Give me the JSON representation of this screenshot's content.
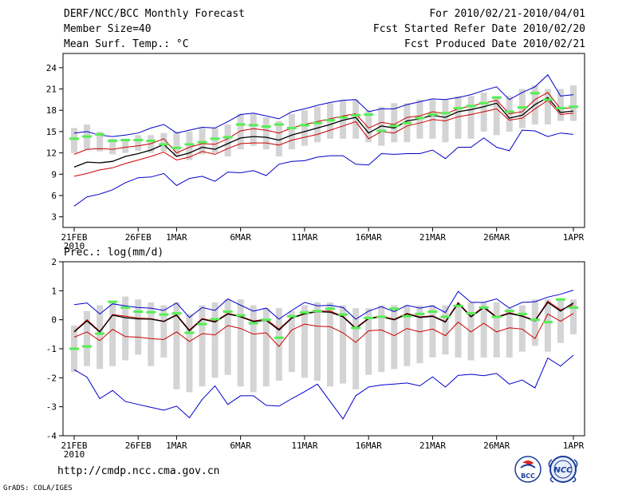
{
  "header": {
    "title": "DERF/NCC/BCC Monthly Forecast",
    "member_size": "Member Size=40",
    "variable": "Mean Surf. Temp.: °C",
    "period": "For 2010/02/21-2010/04/01",
    "started": "Fcst Started Refer Date 2010/02/20",
    "produced": "Fcst Produced Date 2010/02/21"
  },
  "footer": {
    "url": "http://cmdp.ncc.cma.gov.cn",
    "grads": "GrADS: COLA/IGES",
    "logo_bcc": "BCC",
    "logo_ncc": "NCC"
  },
  "colors": {
    "box": "#d4d4d4",
    "mean": "#000000",
    "spread": "#cc0000",
    "extreme": "#0000cc",
    "marker": "#55ee55"
  },
  "chart_data": [
    {
      "type": "box-ensemble",
      "ylabel": "Mean Surf. Temp.: °C",
      "ylim": [
        1.5,
        26
      ],
      "yticks": [
        3,
        6,
        9,
        12,
        15,
        18,
        21,
        24
      ],
      "days": 40,
      "xticks": [
        {
          "day": 0,
          "label": "21FEB"
        },
        {
          "day": 5,
          "label": "26FEB"
        },
        {
          "day": 8,
          "label": "1MAR"
        },
        {
          "day": 13,
          "label": "6MAR"
        },
        {
          "day": 18,
          "label": "11MAR"
        },
        {
          "day": 23,
          "label": "16MAR"
        },
        {
          "day": 28,
          "label": "21MAR"
        },
        {
          "day": 33,
          "label": "26MAR"
        },
        {
          "day": 39,
          "label": "1APR"
        }
      ],
      "year_label": "2010",
      "box_low": [
        12,
        12.5,
        12.2,
        11.8,
        12,
        12.3,
        12,
        12.2,
        11.5,
        11,
        11.8,
        12,
        11.5,
        12.5,
        13,
        12.5,
        11.5,
        12.5,
        13,
        13.5,
        14,
        14,
        14,
        13.5,
        13,
        13.5,
        13.5,
        14,
        14,
        13.5,
        14,
        14,
        15,
        14.5,
        15,
        15.5,
        16,
        16,
        16.5,
        16.5
      ],
      "box_high": [
        15.5,
        16,
        15,
        14,
        14,
        14.5,
        14.5,
        14.8,
        15,
        15,
        15.5,
        15.5,
        16,
        17.5,
        17.5,
        17,
        16.5,
        17.5,
        18,
        18.5,
        19,
        19.5,
        19.5,
        18,
        18.5,
        19,
        19,
        19.5,
        19.5,
        19.5,
        20,
        20,
        20.5,
        20,
        20,
        21,
        21.5,
        21,
        21,
        21.5
      ],
      "max": [
        14.8,
        15,
        14.5,
        14.3,
        14.5,
        14.8,
        15.5,
        16,
        14.8,
        15.2,
        15.6,
        15.5,
        16.4,
        17.4,
        17.6,
        17.2,
        16.8,
        17.8,
        18.2,
        18.7,
        19.1,
        19.4,
        19.5,
        17.8,
        18.2,
        18.2,
        18.8,
        19.2,
        19.6,
        19.5,
        19.8,
        20.2,
        20.8,
        21.3,
        19.5,
        20.5,
        21.3,
        23,
        20,
        20.2
      ],
      "p_high": [
        11.8,
        12.5,
        12.6,
        12.5,
        12.8,
        13,
        13.3,
        14,
        12,
        12.8,
        13.3,
        13.2,
        14,
        15.1,
        15.4,
        15.2,
        14.8,
        15.5,
        16,
        16.4,
        16.8,
        17.2,
        17.5,
        15.5,
        16.3,
        16,
        17,
        17.2,
        17.8,
        17.5,
        18.2,
        18.6,
        19,
        19.4,
        17.5,
        17.8,
        19.5,
        20.5,
        18.2,
        18.4
      ],
      "mean": [
        10,
        10.7,
        10.6,
        10.8,
        11.5,
        11.9,
        12.4,
        13.2,
        11.5,
        12,
        12.8,
        12.5,
        13.3,
        14.1,
        14.3,
        14.2,
        13.8,
        14.5,
        15,
        15.5,
        16,
        16.6,
        17,
        14.8,
        15.8,
        15.5,
        16.5,
        16.8,
        17.3,
        17,
        17.8,
        18.1,
        18.5,
        19,
        16.9,
        17.3,
        18.8,
        19.8,
        17.7,
        17.9
      ],
      "p_low": [
        8.7,
        9.1,
        9.6,
        9.9,
        10.5,
        11,
        11.5,
        12.1,
        11,
        11.4,
        12.2,
        11.8,
        12.6,
        13.3,
        13.4,
        13.4,
        13.1,
        13.8,
        14.2,
        14.6,
        15.2,
        15.8,
        16.4,
        14,
        15,
        14.8,
        15.8,
        16.2,
        16.7,
        16.5,
        17.1,
        17.4,
        17.8,
        18.2,
        16.6,
        16.9,
        18.2,
        19.4,
        17.4,
        17.6
      ],
      "min": [
        4.5,
        5.8,
        6.2,
        6.8,
        7.8,
        8.5,
        8.6,
        9.1,
        7.4,
        8.4,
        8.7,
        8,
        9.3,
        9.2,
        9.5,
        8.8,
        10.4,
        10.8,
        10.9,
        11.4,
        11.6,
        11.6,
        10.4,
        10.3,
        11.9,
        11.8,
        11.9,
        11.9,
        12.4,
        11.2,
        12.8,
        12.8,
        14.1,
        12.8,
        12.3,
        15.2,
        15.1,
        14.3,
        14.8,
        14.6
      ],
      "marker": [
        14,
        14.3,
        14.6,
        13.7,
        13.8,
        13.8,
        13.7,
        13.2,
        12.7,
        13.2,
        13.5,
        14,
        14.2,
        16,
        15.9,
        15.7,
        16,
        15.5,
        15.9,
        16.2,
        16.6,
        17,
        17.3,
        17.4,
        15.1,
        15.8,
        16.2,
        16.9,
        17.4,
        17.6,
        18.3,
        18.6,
        19,
        19.8,
        17.8,
        18.4,
        20.4,
        19.5,
        18.3,
        18.5
      ]
    },
    {
      "type": "box-ensemble",
      "ylabel": "Prec.: log(mm/d)",
      "ylim": [
        -4,
        2
      ],
      "yticks": [
        -4,
        -3,
        -2,
        -1,
        0,
        1,
        2
      ],
      "days": 40,
      "xticks": [
        {
          "day": 0,
          "label": "21FEB"
        },
        {
          "day": 5,
          "label": "26FEB"
        },
        {
          "day": 8,
          "label": "1MAR"
        },
        {
          "day": 13,
          "label": "6MAR"
        },
        {
          "day": 18,
          "label": "11MAR"
        },
        {
          "day": 23,
          "label": "16MAR"
        },
        {
          "day": 28,
          "label": "21MAR"
        },
        {
          "day": 33,
          "label": "26MAR"
        },
        {
          "day": 39,
          "label": "1APR"
        }
      ],
      "year_label": "2010",
      "box_low": [
        -1.8,
        -1.6,
        -1.7,
        -1.6,
        -1.4,
        -1.2,
        -1.6,
        -1.3,
        -2.4,
        -2.5,
        -2.3,
        -2,
        -1.9,
        -2.3,
        -2.5,
        -2.3,
        -2.1,
        -1.8,
        -2,
        -2.1,
        -2.3,
        -2.2,
        -2.4,
        -1.9,
        -1.8,
        -1.7,
        -1.6,
        -1.5,
        -1.3,
        -1.2,
        -1.3,
        -1.4,
        -1.3,
        -1.3,
        -1.3,
        -1.1,
        -0.9,
        -1.1,
        -0.8,
        -0.5
      ],
      "box_high": [
        -0.2,
        0.3,
        0.5,
        0.6,
        0.8,
        0.7,
        0.6,
        0.5,
        0.6,
        0.2,
        0.5,
        0.6,
        0.7,
        0.7,
        0.5,
        0.4,
        0.4,
        0.3,
        0.5,
        0.6,
        0.6,
        0.5,
        0.4,
        0.4,
        0.5,
        0.5,
        0.5,
        0.5,
        0.5,
        0.5,
        0.5,
        0.6,
        0.6,
        0.6,
        0.4,
        0.5,
        0.7,
        0.7,
        0.7,
        0.7
      ],
      "max": [
        0.52,
        0.58,
        0.2,
        0.55,
        0.48,
        0.42,
        0.4,
        0.32,
        0.58,
        0.08,
        0.42,
        0.32,
        0.72,
        0.5,
        0.3,
        0.4,
        0.02,
        0.32,
        0.6,
        0.48,
        0.5,
        0.42,
        0.02,
        0.3,
        0.45,
        0.28,
        0.5,
        0.4,
        0.48,
        0.25,
        0.98,
        0.6,
        0.6,
        0.72,
        0.4,
        0.6,
        0.62,
        0.78,
        0.88,
        1.02
      ],
      "p_high": [
        -0.4,
        0,
        -0.4,
        0.18,
        0.12,
        0.06,
        0.04,
        -0.05,
        0.18,
        -0.35,
        0.04,
        -0.05,
        0.22,
        0.12,
        -0.04,
        0.02,
        -0.32,
        0.08,
        0.22,
        0.3,
        0.3,
        0.12,
        -0.28,
        0.06,
        0.12,
        0.02,
        0.22,
        0.1,
        0.14,
        -0.06,
        0.6,
        0.12,
        0.46,
        0.1,
        0.24,
        0.14,
        -0.02,
        0.64,
        0.34,
        0.52
      ],
      "mean": [
        -0.42,
        -0.04,
        -0.42,
        0.16,
        0.07,
        0.03,
        0.02,
        -0.06,
        0.16,
        -0.38,
        0.02,
        -0.08,
        0.2,
        0.1,
        -0.06,
        -0.02,
        -0.36,
        0.06,
        0.2,
        0.28,
        0.26,
        0.1,
        -0.3,
        0.04,
        0.1,
        0,
        0.2,
        0.08,
        0.12,
        -0.08,
        0.56,
        0.1,
        0.42,
        0.08,
        0.22,
        0.12,
        -0.04,
        0.6,
        0.3,
        0.58
      ],
      "p_low": [
        -0.6,
        -0.42,
        -0.72,
        -0.33,
        -0.58,
        -0.6,
        -0.65,
        -0.68,
        -0.42,
        -0.75,
        -0.48,
        -0.52,
        -0.2,
        -0.3,
        -0.5,
        -0.45,
        -0.92,
        -0.35,
        -0.15,
        -0.22,
        -0.24,
        -0.45,
        -0.78,
        -0.38,
        -0.35,
        -0.55,
        -0.3,
        -0.42,
        -0.32,
        -0.55,
        -0.08,
        -0.42,
        -0.12,
        -0.42,
        -0.28,
        -0.32,
        -0.65,
        0.2,
        -0.05,
        0.22
      ],
      "min": [
        -1.72,
        -1.98,
        -2.72,
        -2.44,
        -2.82,
        -2.92,
        -3.02,
        -3.12,
        -2.98,
        -3.38,
        -2.75,
        -2.28,
        -2.92,
        -2.62,
        -2.62,
        -2.95,
        -2.98,
        -2.72,
        -2.48,
        -2.22,
        -2.82,
        -3.42,
        -2.62,
        -2.32,
        -2.25,
        -2.22,
        -2.18,
        -2.28,
        -1.97,
        -2.32,
        -1.92,
        -1.88,
        -1.93,
        -1.85,
        -2.22,
        -2.08,
        -2.35,
        -1.32,
        -1.6,
        -1.22
      ],
      "marker": [
        -1,
        -0.92,
        -0.48,
        0.62,
        0.42,
        0.28,
        0.26,
        0.18,
        0.22,
        -0.45,
        -0.15,
        0.02,
        0.28,
        0.15,
        -0.12,
        0,
        -0.62,
        0.12,
        0.25,
        0.3,
        0.38,
        0.18,
        -0.28,
        0.06,
        0.1,
        0.38,
        0.12,
        0.2,
        0.28,
        0.1,
        0.48,
        0.22,
        0.42,
        0.1,
        0.3,
        0.2,
        0,
        -0.08,
        0.7,
        0.42
      ]
    }
  ]
}
